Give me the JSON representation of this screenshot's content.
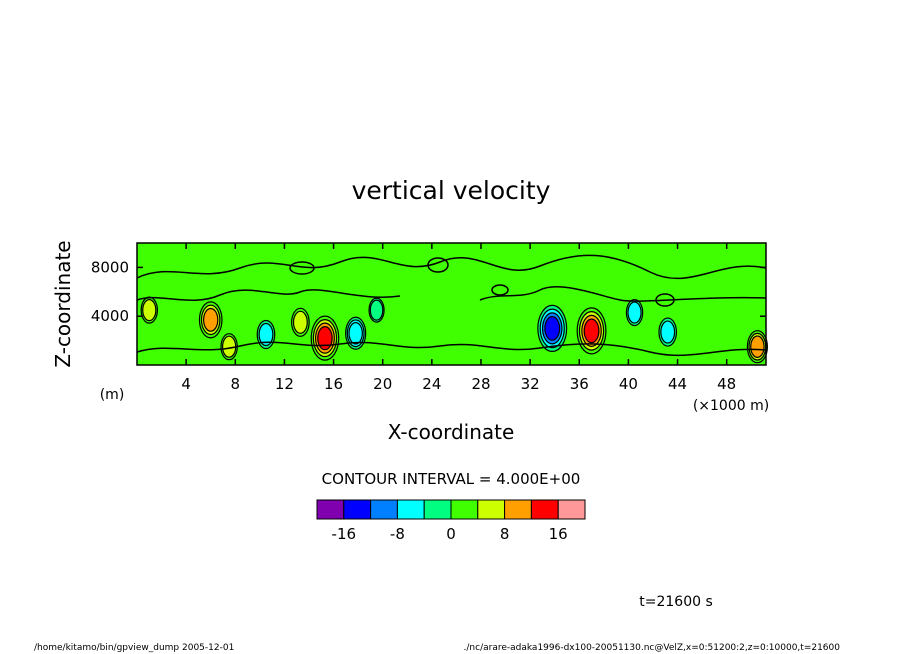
{
  "chart_data": {
    "type": "heatmap",
    "title": "vertical velocity",
    "xlabel": "X-coordinate",
    "ylabel": "Z-coordinate",
    "x_unit_label": "(m)",
    "x_scale_label": "(×1000 m)",
    "xlim": [
      0,
      51.2
    ],
    "ylim": [
      0,
      10000
    ],
    "x_ticks": [
      "4",
      "8",
      "12",
      "16",
      "20",
      "24",
      "28",
      "32",
      "36",
      "40",
      "44",
      "48"
    ],
    "y_ticks": [
      "4000",
      "8000"
    ],
    "contour_interval_text": "CONTOUR INTERVAL = 4.000E+00",
    "contour_levels": [
      -20,
      -16,
      -12,
      -8,
      -4,
      0,
      4,
      8,
      12,
      16,
      20
    ],
    "colorbar_labels": [
      "-16",
      "-8",
      "0",
      "8",
      "16"
    ],
    "colorbar_colors": [
      "#8000b0",
      "#0000ff",
      "#0080ff",
      "#00ffff",
      "#00ff80",
      "#40ff00",
      "#ccff00",
      "#ffa000",
      "#ff0000",
      "#ff9999"
    ],
    "features": [
      {
        "x": 6.0,
        "z": 3700,
        "value": 10
      },
      {
        "x": 7.5,
        "z": 1500,
        "value": 5
      },
      {
        "x": 10.5,
        "z": 2500,
        "value": -6
      },
      {
        "x": 13.3,
        "z": 3500,
        "value": 6
      },
      {
        "x": 15.3,
        "z": 2200,
        "value": 14
      },
      {
        "x": 17.8,
        "z": 2600,
        "value": -8
      },
      {
        "x": 19.5,
        "z": 4500,
        "value": -4
      },
      {
        "x": 33.8,
        "z": 3000,
        "value": -15
      },
      {
        "x": 37.0,
        "z": 2800,
        "value": 15
      },
      {
        "x": 40.5,
        "z": 4300,
        "value": -5
      },
      {
        "x": 43.2,
        "z": 2700,
        "value": -6
      },
      {
        "x": 50.5,
        "z": 1500,
        "value": 8
      },
      {
        "x": 1.0,
        "z": 4500,
        "value": 5
      }
    ]
  },
  "time_label": "t=21600 s",
  "footer": {
    "left": "/home/kitamo/bin/gpview_dump  2005-12-01",
    "right": "./nc/arare-adaka1996-dx100-20051130.nc@VelZ,x=0:51200:2,z=0:10000,t=21600"
  }
}
